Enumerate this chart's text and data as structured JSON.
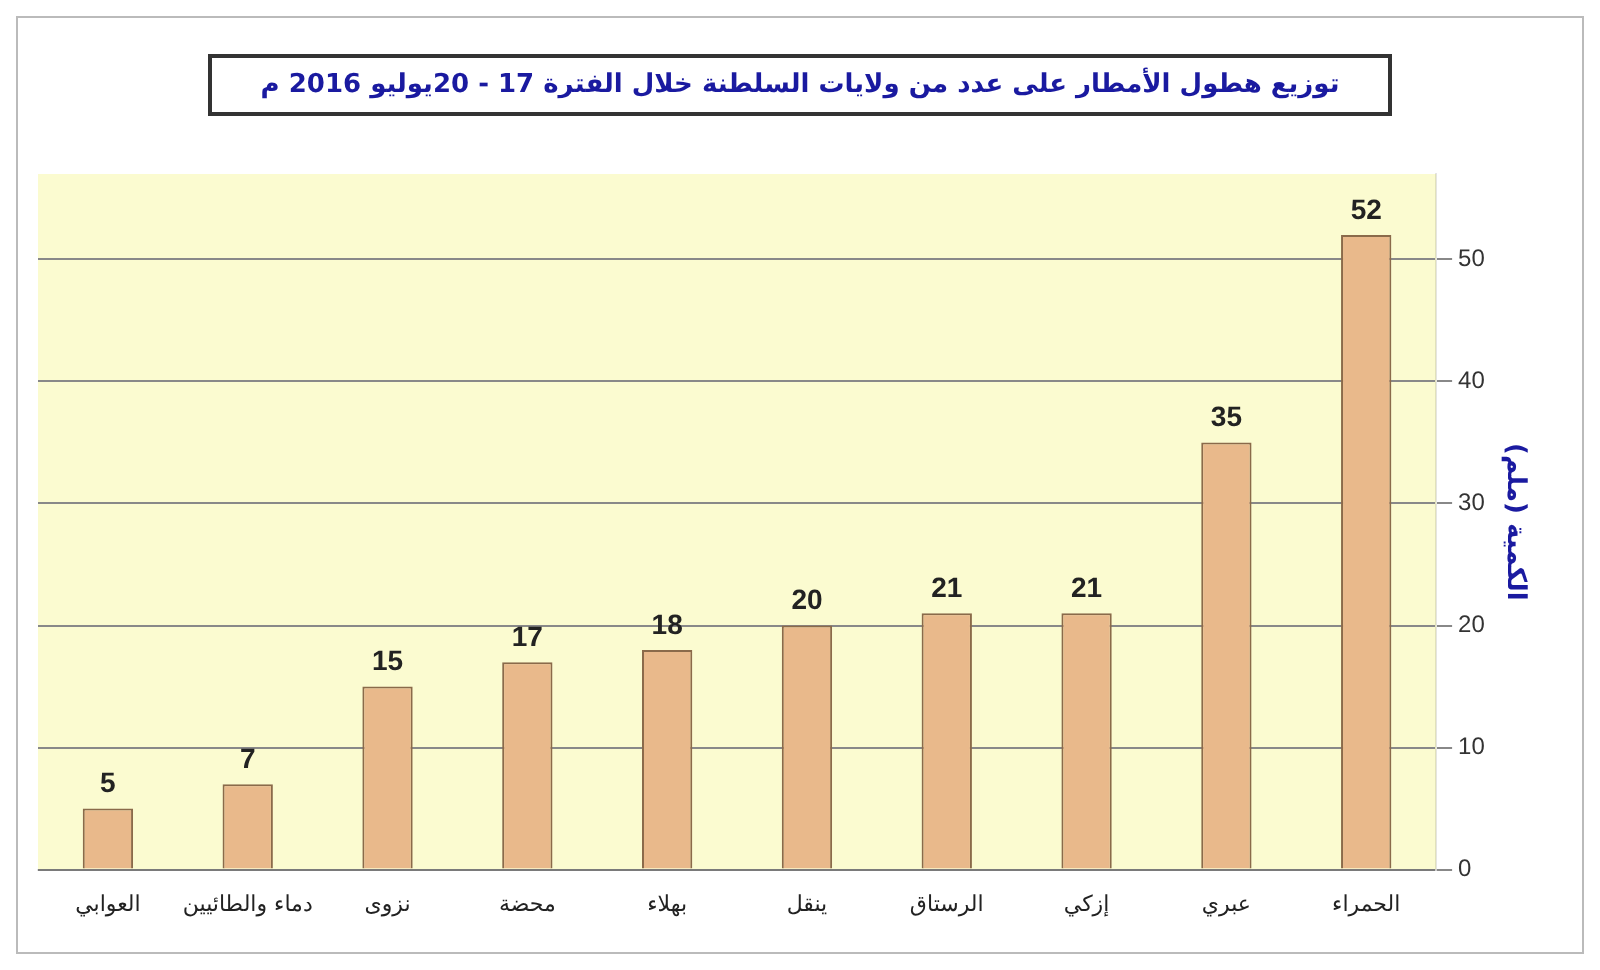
{
  "chart_data": {
    "type": "bar",
    "title": "توزيع هطول الأمطار على عدد من ولايات السلطنة خلال الفترة 17 - 20يوليو 2016 م",
    "ylabel": "الكمية (ملم)",
    "categories": [
      "العوابي",
      "دماء والطائيين",
      "نزوى",
      "محضة",
      "بهلاء",
      "ينقل",
      "الرستاق",
      "إزكي",
      "عبري",
      "الحمراء"
    ],
    "values": [
      5,
      7,
      15,
      17,
      18,
      20,
      21,
      21,
      35,
      52
    ],
    "color": "#e9b98b",
    "ylim": [
      0,
      57
    ],
    "yticks": [
      0,
      10,
      20,
      30,
      40,
      50
    ],
    "grid": "y",
    "data_labels": true
  }
}
